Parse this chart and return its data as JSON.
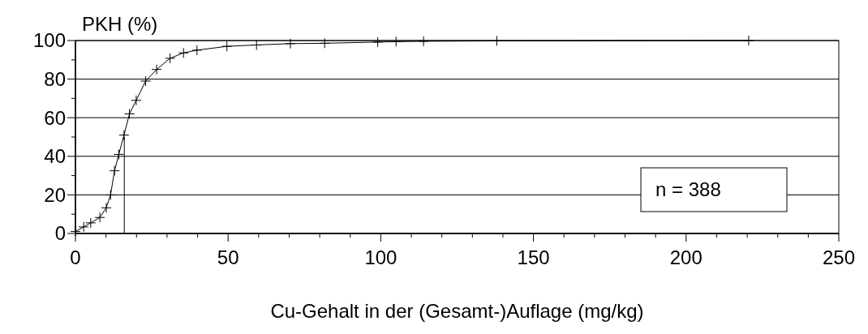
{
  "chart_data": {
    "type": "line",
    "ylabel": "PKH (%)",
    "xlabel": "Cu-Gehalt in der (Gesamt-)Auflage (mg/kg)",
    "xlim": [
      0,
      250
    ],
    "xticks": [
      0,
      50,
      100,
      150,
      200,
      250
    ],
    "ylim": [
      0,
      100
    ],
    "yticks": [
      0,
      20,
      40,
      60,
      80,
      100
    ],
    "grid": "y",
    "annotations": [
      "n = 388"
    ],
    "series": [
      {
        "color": "#000000",
        "marker": "cross",
        "x": [
          0,
          2.7,
          5,
          8,
          10.1,
          11.5,
          12.8,
          14.2,
          15.9,
          17.7,
          19.9,
          23,
          26.6,
          31,
          35.4,
          39.8,
          49.6,
          59.3,
          70.4,
          81.6,
          99,
          105,
          114,
          138,
          220.5
        ],
        "values": [
          1,
          3.4,
          5.5,
          8.3,
          13.3,
          20,
          32.5,
          41,
          51,
          62,
          69,
          79,
          85,
          90.8,
          93.6,
          95,
          97,
          97.7,
          98.4,
          98.6,
          99.2,
          99.4,
          99.6,
          99.8,
          100
        ]
      },
      {
        "color": "#000000",
        "marker": "none",
        "x": [
          16,
          16
        ],
        "values": [
          0,
          50
        ]
      }
    ]
  }
}
